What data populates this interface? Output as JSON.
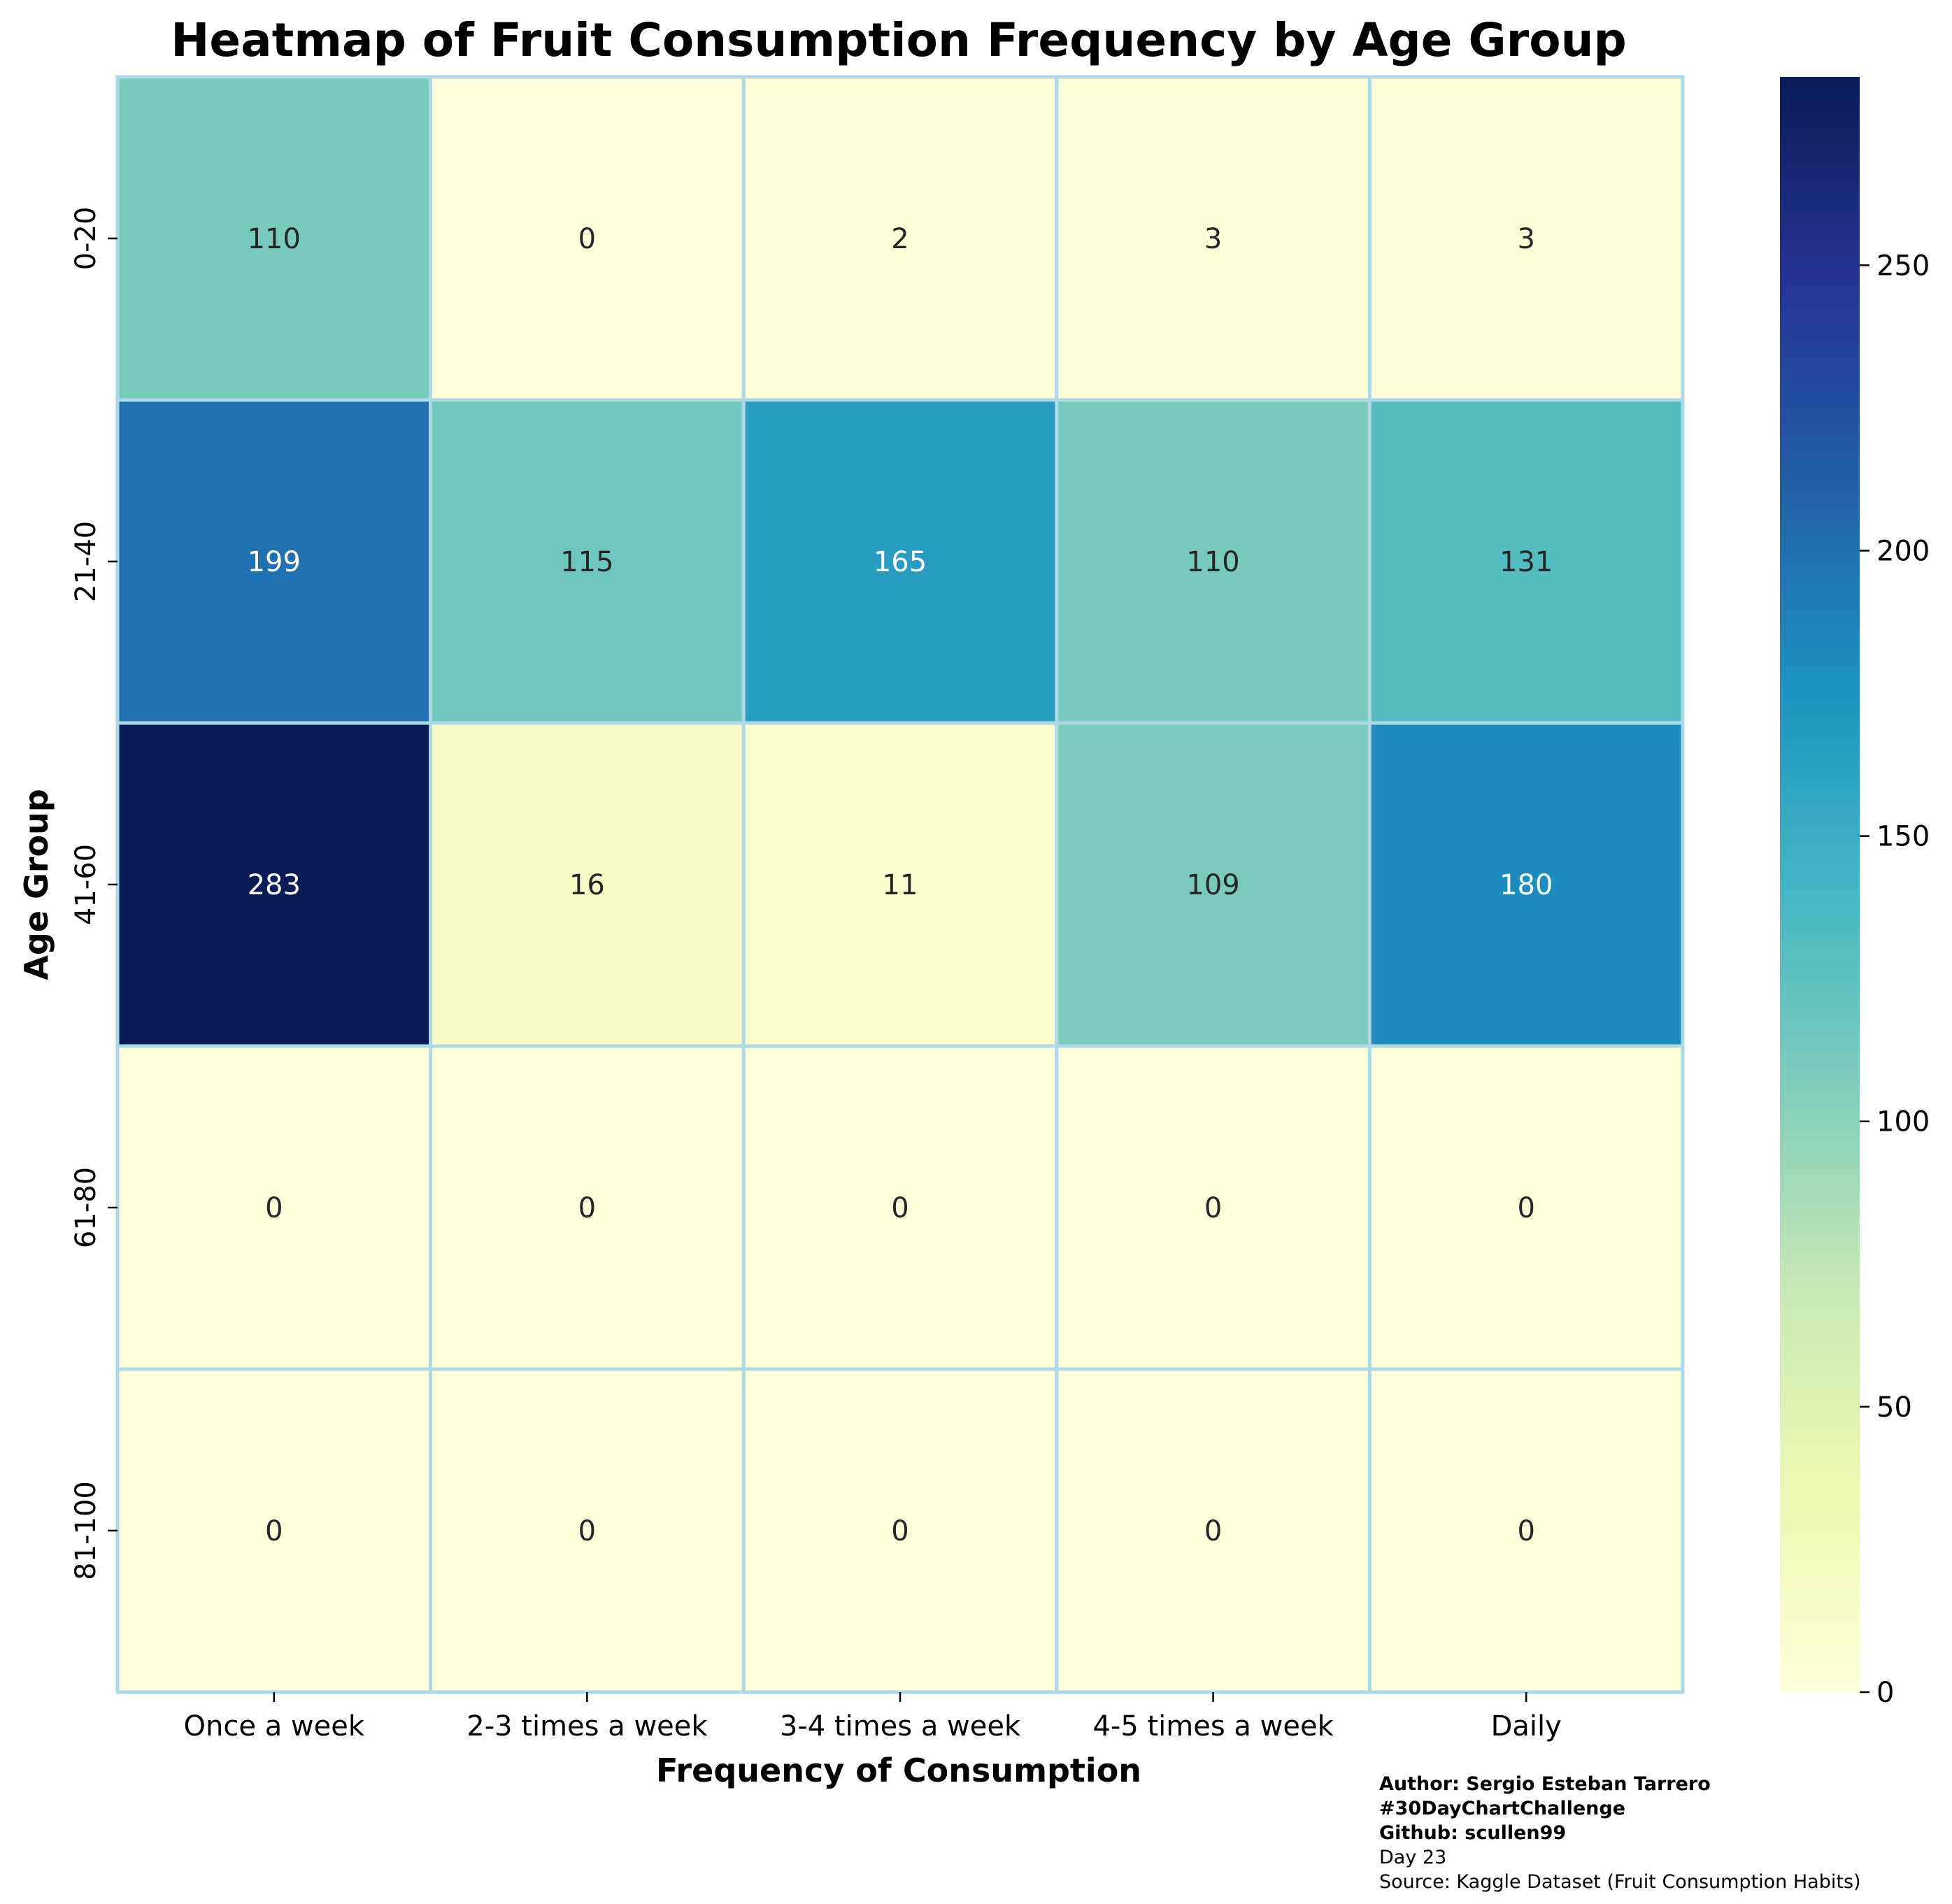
{
  "chart_data": {
    "type": "heatmap",
    "title": "Heatmap of Fruit Consumption Frequency by Age Group",
    "xlabel": "Frequency of Consumption",
    "ylabel": "Age Group",
    "x_categories": [
      "Once a week",
      "2-3 times a week",
      "3-4 times a week",
      "4-5 times a week",
      "Daily"
    ],
    "y_categories": [
      "0-20",
      "21-40",
      "41-60",
      "61-80",
      "81-100"
    ],
    "values": [
      [
        110,
        0,
        2,
        3,
        3
      ],
      [
        199,
        115,
        165,
        110,
        131
      ],
      [
        283,
        16,
        11,
        109,
        180
      ],
      [
        0,
        0,
        0,
        0,
        0
      ],
      [
        0,
        0,
        0,
        0,
        0
      ]
    ],
    "colormap": "YlGnBu",
    "value_range": [
      0,
      283
    ],
    "colorbar_ticks": [
      0,
      50,
      100,
      150,
      200,
      250
    ],
    "annotated": true,
    "cell_border_color": "#add8e6"
  },
  "credits": {
    "author": "Author: Sergio Esteban Tarrero",
    "challenge": "#30DayChartChallenge",
    "github": "Github: scullen99",
    "day": "Day 23",
    "source": "Source: Kaggle Dataset (Fruit Consumption Habits)"
  }
}
